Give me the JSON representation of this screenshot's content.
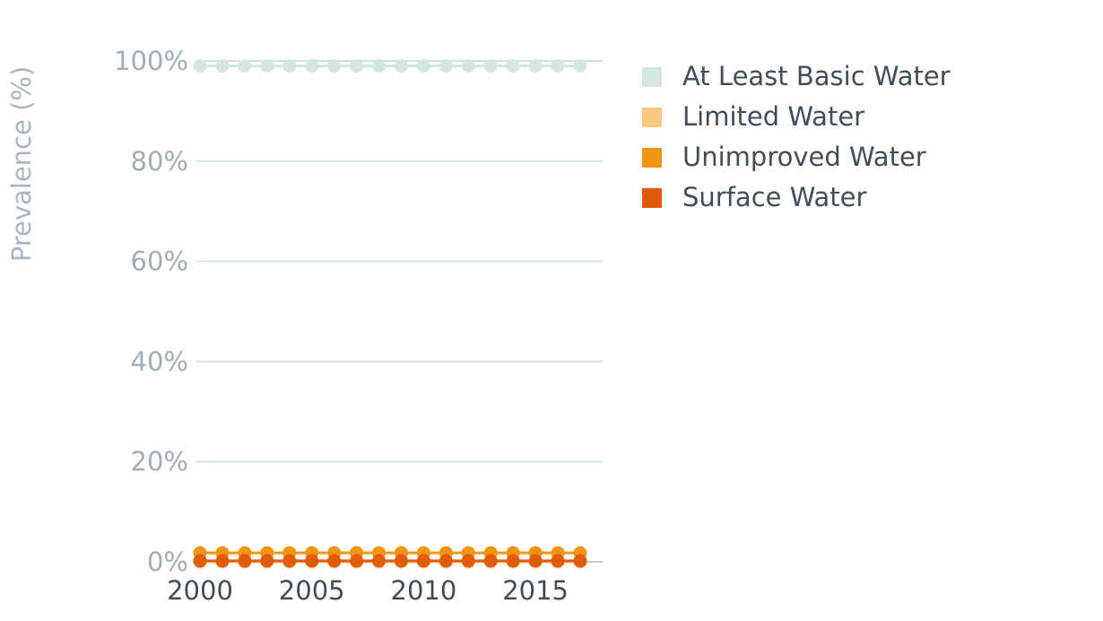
{
  "chart_data": {
    "type": "line",
    "title": "",
    "xlabel": "",
    "ylabel": "Prevalence (%)",
    "x": [
      2000,
      2001,
      2002,
      2003,
      2004,
      2005,
      2006,
      2007,
      2008,
      2009,
      2010,
      2011,
      2012,
      2013,
      2014,
      2015,
      2016,
      2017
    ],
    "x_tick_values": [
      2000,
      2005,
      2010,
      2015
    ],
    "x_tick_labels": [
      "2000",
      "2005",
      "2010",
      "2015"
    ],
    "y_tick_values": [
      0,
      20,
      40,
      60,
      80,
      100
    ],
    "y_tick_labels": [
      "0%",
      "20%",
      "40%",
      "60%",
      "80%",
      "100%"
    ],
    "ylim": [
      0,
      100
    ],
    "grid": true,
    "legend_position": "right",
    "series": [
      {
        "name": "At Least Basic Water",
        "color": "#d2e6e4",
        "values": [
          99,
          99,
          99,
          99,
          99,
          99,
          99,
          99,
          99,
          99,
          99,
          99,
          99,
          99,
          99,
          99,
          99,
          99
        ]
      },
      {
        "name": "Limited Water",
        "color": "#fac87f",
        "values": [
          0,
          0,
          0,
          0,
          0,
          0,
          0,
          0,
          0,
          0,
          0,
          0,
          0,
          0,
          0,
          0,
          0,
          0
        ]
      },
      {
        "name": "Unimproved Water",
        "color": "#f29312",
        "values": [
          1.8,
          1.8,
          1.8,
          1.8,
          1.8,
          1.8,
          1.8,
          1.8,
          1.8,
          1.8,
          1.8,
          1.8,
          1.8,
          1.8,
          1.8,
          1.8,
          1.8,
          1.8
        ]
      },
      {
        "name": "Surface Water",
        "color": "#e05b0d",
        "values": [
          0.2,
          0.2,
          0.2,
          0.2,
          0.2,
          0.2,
          0.2,
          0.2,
          0.2,
          0.2,
          0.2,
          0.2,
          0.2,
          0.2,
          0.2,
          0.2,
          0.2,
          0.2
        ]
      }
    ],
    "colors": {
      "grid": "#d4e2df",
      "zero_axis": "#c8ced3",
      "tick_y": "#a0adb8",
      "tick_x": "#3f4e5a",
      "axis_title": "#a9b6c1",
      "legend_text": "#3f4e5a"
    }
  }
}
